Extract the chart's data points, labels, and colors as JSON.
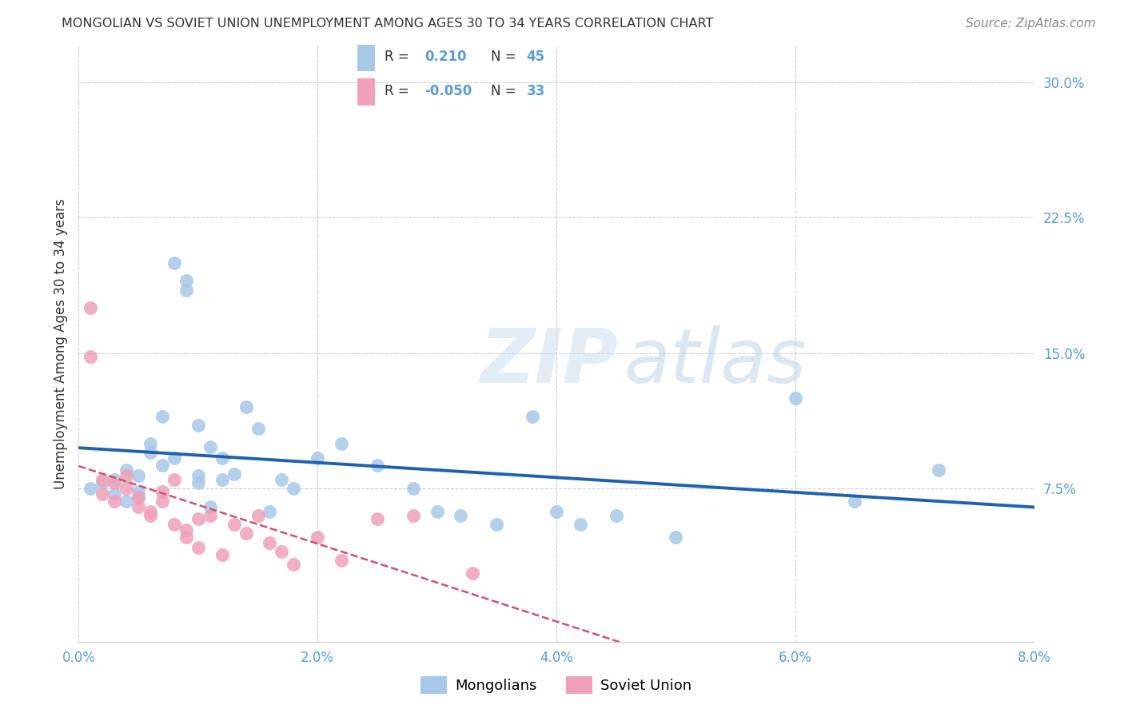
{
  "title": "MONGOLIAN VS SOVIET UNION UNEMPLOYMENT AMONG AGES 30 TO 34 YEARS CORRELATION CHART",
  "source": "Source: ZipAtlas.com",
  "ylabel": "Unemployment Among Ages 30 to 34 years",
  "xlim": [
    0.0,
    0.08
  ],
  "ylim": [
    -0.01,
    0.32
  ],
  "xticks": [
    0.0,
    0.02,
    0.04,
    0.06,
    0.08
  ],
  "xtick_labels": [
    "0.0%",
    "2.0%",
    "4.0%",
    "6.0%",
    "8.0%"
  ],
  "yticks": [
    0.075,
    0.15,
    0.225,
    0.3
  ],
  "ytick_labels": [
    "7.5%",
    "15.0%",
    "22.5%",
    "30.0%"
  ],
  "axis_color": "#5b9bd5",
  "grid_color": "#d0d0d0",
  "background_color": "#ffffff",
  "mongolian_color": "#a8c8e8",
  "mongolian_line_color": "#2060b0",
  "soviet_color": "#f0a0b8",
  "soviet_line_color": "#d05070",
  "mongolian_R": 0.21,
  "mongolian_N": 45,
  "soviet_R": -0.05,
  "soviet_N": 33,
  "legend_entries": [
    "Mongolians",
    "Soviet Union"
  ],
  "mong_x": [
    0.001,
    0.002,
    0.003,
    0.003,
    0.004,
    0.004,
    0.005,
    0.005,
    0.005,
    0.006,
    0.006,
    0.007,
    0.007,
    0.008,
    0.008,
    0.009,
    0.009,
    0.01,
    0.01,
    0.01,
    0.011,
    0.011,
    0.012,
    0.012,
    0.013,
    0.014,
    0.015,
    0.016,
    0.017,
    0.018,
    0.02,
    0.022,
    0.025,
    0.028,
    0.03,
    0.032,
    0.035,
    0.038,
    0.04,
    0.042,
    0.045,
    0.05,
    0.06,
    0.065,
    0.072
  ],
  "mong_y": [
    0.075,
    0.078,
    0.072,
    0.08,
    0.068,
    0.085,
    0.073,
    0.07,
    0.082,
    0.095,
    0.1,
    0.115,
    0.088,
    0.092,
    0.2,
    0.185,
    0.19,
    0.078,
    0.082,
    0.11,
    0.098,
    0.065,
    0.08,
    0.092,
    0.083,
    0.12,
    0.108,
    0.062,
    0.08,
    0.075,
    0.092,
    0.1,
    0.088,
    0.075,
    0.062,
    0.06,
    0.055,
    0.115,
    0.062,
    0.055,
    0.06,
    0.048,
    0.125,
    0.068,
    0.085
  ],
  "sov_x": [
    0.001,
    0.001,
    0.002,
    0.002,
    0.003,
    0.003,
    0.004,
    0.004,
    0.005,
    0.005,
    0.006,
    0.006,
    0.007,
    0.007,
    0.008,
    0.008,
    0.009,
    0.009,
    0.01,
    0.01,
    0.011,
    0.012,
    0.013,
    0.014,
    0.015,
    0.016,
    0.017,
    0.018,
    0.02,
    0.022,
    0.025,
    0.028,
    0.033
  ],
  "sov_y": [
    0.175,
    0.148,
    0.08,
    0.072,
    0.078,
    0.068,
    0.075,
    0.082,
    0.065,
    0.07,
    0.062,
    0.06,
    0.068,
    0.073,
    0.055,
    0.08,
    0.048,
    0.052,
    0.042,
    0.058,
    0.06,
    0.038,
    0.055,
    0.05,
    0.06,
    0.045,
    0.04,
    0.033,
    0.048,
    0.035,
    0.058,
    0.06,
    0.028
  ]
}
